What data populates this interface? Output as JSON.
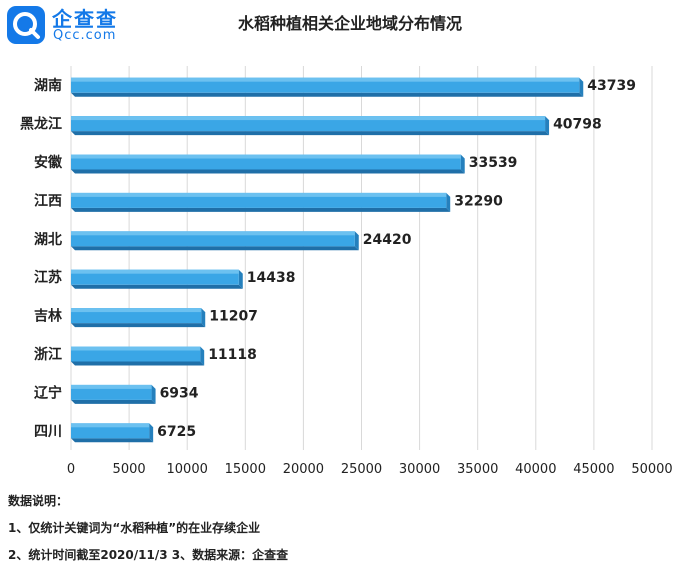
{
  "brand": {
    "name": "企查查",
    "domain": "Qcc.com",
    "color": "#1479e8"
  },
  "chart_data": {
    "type": "bar",
    "orientation": "horizontal",
    "title": "水稻种植相关企业地域分布情况",
    "categories": [
      "湖南",
      "黑龙江",
      "安徽",
      "江西",
      "湖北",
      "江苏",
      "吉林",
      "浙江",
      "辽宁",
      "四川"
    ],
    "values": [
      43739,
      40798,
      33539,
      32290,
      24420,
      14438,
      11207,
      11118,
      6934,
      6725
    ],
    "xlim": [
      0,
      50000
    ],
    "xticks": [
      0,
      5000,
      10000,
      15000,
      20000,
      25000,
      30000,
      35000,
      40000,
      45000,
      50000
    ],
    "grid": "vertical",
    "bar_color": "#3aa6e6",
    "data_labels": true
  },
  "notes": {
    "heading": "数据说明：",
    "lines": [
      "1、仅统计关键词为“水稻种植”的在业存续企业",
      "2、统计时间截至2020/11/3 3、数据来源：企查查"
    ]
  }
}
